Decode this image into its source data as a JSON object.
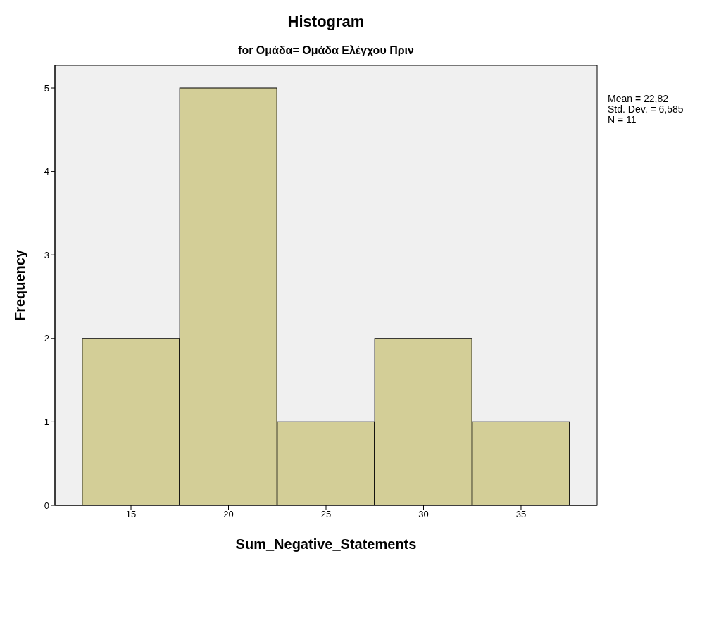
{
  "chart_data": {
    "type": "histogram",
    "title": "Histogram",
    "subtitle": "for Ομάδα= Ομάδα Ελέγχου Πριν",
    "xlabel": "Sum_Negative_Statements",
    "ylabel": "Frequency",
    "bins": [
      12.5,
      17.5,
      22.5,
      27.5,
      32.5,
      37.5
    ],
    "values": [
      2,
      5,
      1,
      2,
      1
    ],
    "color": "#d3ce97",
    "xlim": [
      11.1,
      38.9
    ],
    "xticks": [
      15,
      20,
      25,
      30,
      35
    ],
    "ylim": [
      0,
      5.27
    ],
    "yticks": [
      0,
      1,
      2,
      3,
      4,
      5
    ],
    "annotations": [
      "Mean = 22,82",
      "Std. Dev. = 6,585",
      "N = 11"
    ]
  }
}
